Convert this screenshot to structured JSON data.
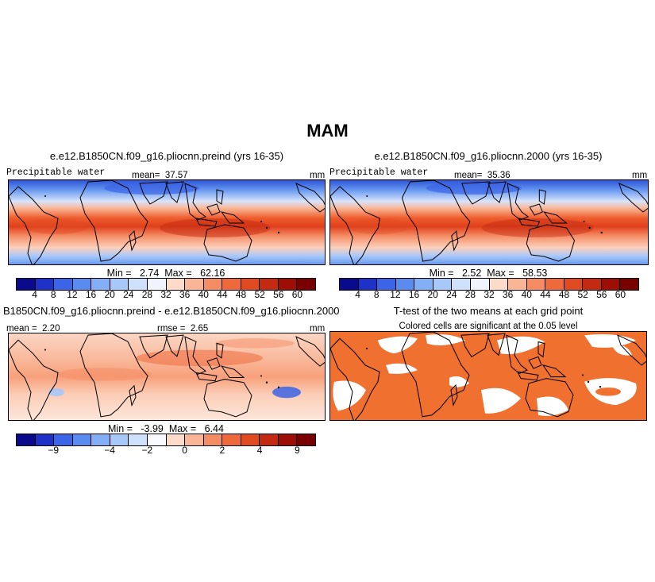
{
  "figure": {
    "season_title": "MAM"
  },
  "panels": {
    "preind": {
      "title": "e.e12.B1850CN.f09_g16.pliocnn.preind (yrs 16-35)",
      "variable": "Precipitable water",
      "mean_label": "mean=",
      "mean_value": "37.57",
      "units": "mm",
      "min_label": "Min =",
      "min_value": "2.74",
      "max_label": "Max =",
      "max_value": "62.16"
    },
    "y2000": {
      "title": "e.e12.B1850CN.f09_g16.pliocnn.2000 (yrs 16-35)",
      "variable": "Precipitable water",
      "mean_label": "mean=",
      "mean_value": "35.36",
      "units": "mm",
      "min_label": "Min =",
      "min_value": "2.52",
      "max_label": "Max =",
      "max_value": "58.53"
    },
    "diff": {
      "title": "B1850CN.f09_g16.pliocnn.preind - e.e12.B1850CN.f09_g16.pliocnn.2000",
      "mean_label": "mean =",
      "mean_value": "2.20",
      "rmse_label": "rmse =",
      "rmse_value": "2.65",
      "units": "mm",
      "min_label": "Min =",
      "min_value": "-3.99",
      "max_label": "Max =",
      "max_value": "6.44"
    },
    "ttest": {
      "title": "T-test of the two means at each grid point",
      "subtitle": "Colored cells are significant at the 0.05 level",
      "color": "#f07030"
    }
  },
  "colorbars": {
    "absolute": {
      "ticks": [
        "4",
        "8",
        "12",
        "16",
        "20",
        "24",
        "28",
        "32",
        "36",
        "40",
        "44",
        "48",
        "52",
        "56",
        "60"
      ],
      "colors": [
        "#0a0a8c",
        "#1e32c8",
        "#3c64e6",
        "#5a8cf0",
        "#82aff5",
        "#a8c8fa",
        "#cfe0fc",
        "#f0f4ff",
        "#fcdcc8",
        "#fab496",
        "#f58c64",
        "#ee6a3c",
        "#e04a22",
        "#c32a12",
        "#9c0e06",
        "#780000"
      ]
    },
    "difference": {
      "ticks": [
        "−9",
        "−4",
        "−2",
        "0",
        "2",
        "4",
        "9"
      ],
      "colors": [
        "#0a0a8c",
        "#1e32c8",
        "#3c64e6",
        "#5a8cf0",
        "#82aff5",
        "#a8c8fa",
        "#cfe0fc",
        "#f8f8ff",
        "#fcdcc8",
        "#fab496",
        "#f58c64",
        "#ee6a3c",
        "#e04a22",
        "#c32a12",
        "#9c0e06",
        "#780000"
      ]
    }
  }
}
